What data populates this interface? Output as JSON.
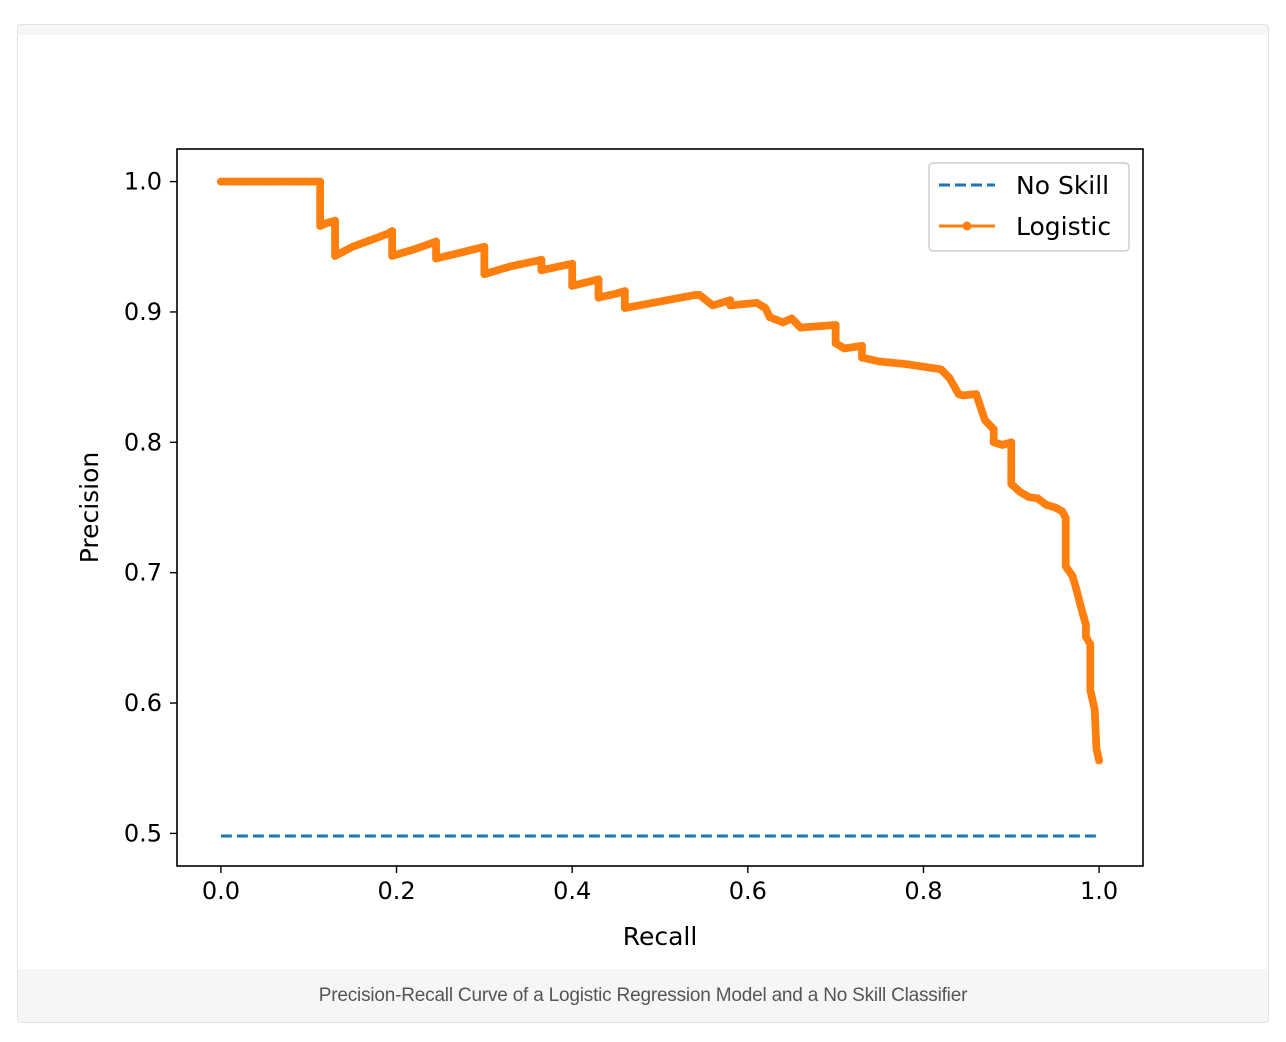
{
  "caption": "Precision-Recall Curve of a Logistic Regression Model and a No Skill Classifier",
  "chart_data": {
    "type": "line",
    "title": "",
    "xlabel": "Recall",
    "ylabel": "Precision",
    "xlim": [
      -0.05,
      1.05
    ],
    "ylim": [
      0.475,
      1.025
    ],
    "xticks": [
      0.0,
      0.2,
      0.4,
      0.6,
      0.8,
      1.0
    ],
    "xtick_labels": [
      "0.0",
      "0.2",
      "0.4",
      "0.6",
      "0.8",
      "1.0"
    ],
    "yticks": [
      0.5,
      0.6,
      0.7,
      0.8,
      0.9,
      1.0
    ],
    "ytick_labels": [
      "0.5",
      "0.6",
      "0.7",
      "0.8",
      "0.9",
      "1.0"
    ],
    "grid": false,
    "legend_position": "top-right",
    "series": [
      {
        "name": "No Skill",
        "color": "#1f77b4",
        "style": "dashed",
        "marker": "none",
        "x": [
          0.0,
          1.0
        ],
        "y": [
          0.498,
          0.498
        ]
      },
      {
        "name": "Logistic",
        "color": "#ff7f0e",
        "style": "solid",
        "marker": "point",
        "x": [
          0.0,
          0.02,
          0.04,
          0.06,
          0.08,
          0.1,
          0.113,
          0.113,
          0.12,
          0.13,
          0.13,
          0.15,
          0.17,
          0.19,
          0.195,
          0.195,
          0.22,
          0.245,
          0.245,
          0.27,
          0.3,
          0.3,
          0.33,
          0.365,
          0.365,
          0.4,
          0.4,
          0.43,
          0.43,
          0.45,
          0.46,
          0.46,
          0.5,
          0.54,
          0.545,
          0.56,
          0.58,
          0.58,
          0.61,
          0.62,
          0.625,
          0.64,
          0.65,
          0.66,
          0.7,
          0.7,
          0.71,
          0.73,
          0.73,
          0.75,
          0.78,
          0.82,
          0.83,
          0.84,
          0.845,
          0.86,
          0.863,
          0.87,
          0.88,
          0.88,
          0.89,
          0.9,
          0.9,
          0.91,
          0.92,
          0.93,
          0.94,
          0.95,
          0.958,
          0.962,
          0.962,
          0.97,
          0.975,
          0.98,
          0.985,
          0.985,
          0.99,
          0.99,
          0.995,
          0.997,
          1.0
        ],
        "y": [
          1.0,
          1.0,
          1.0,
          1.0,
          1.0,
          1.0,
          1.0,
          0.966,
          0.968,
          0.97,
          0.943,
          0.95,
          0.955,
          0.96,
          0.962,
          0.943,
          0.948,
          0.954,
          0.941,
          0.945,
          0.95,
          0.929,
          0.935,
          0.94,
          0.932,
          0.937,
          0.92,
          0.925,
          0.911,
          0.914,
          0.916,
          0.903,
          0.908,
          0.913,
          0.913,
          0.905,
          0.909,
          0.905,
          0.907,
          0.903,
          0.896,
          0.892,
          0.895,
          0.888,
          0.89,
          0.876,
          0.872,
          0.874,
          0.865,
          0.862,
          0.86,
          0.856,
          0.849,
          0.837,
          0.836,
          0.837,
          0.831,
          0.817,
          0.81,
          0.8,
          0.798,
          0.8,
          0.768,
          0.762,
          0.758,
          0.757,
          0.752,
          0.75,
          0.747,
          0.742,
          0.705,
          0.697,
          0.685,
          0.672,
          0.66,
          0.651,
          0.645,
          0.61,
          0.595,
          0.565,
          0.556
        ]
      }
    ]
  }
}
